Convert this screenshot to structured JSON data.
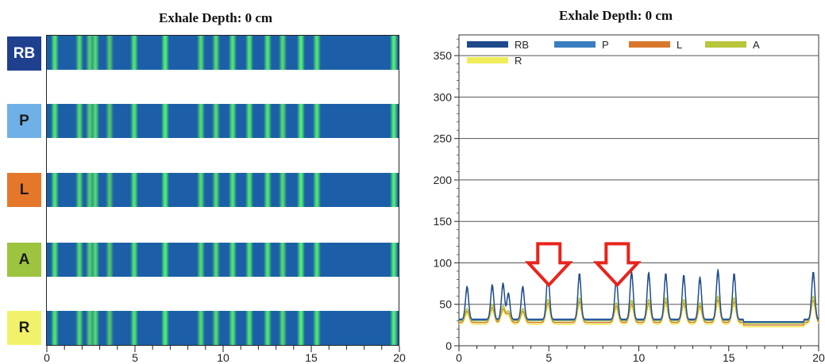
{
  "chart_data": [
    {
      "type": "heatmap",
      "title": "Exhale  Depth: 0 cm",
      "rows": [
        "RB",
        "P",
        "L",
        "A",
        "R"
      ],
      "row_colors": {
        "RB": "#1f3f8f",
        "P": "#6fb0e6",
        "L": "#e5772a",
        "A": "#9cc43f",
        "R": "#f2f26a"
      },
      "xlim": [
        0,
        20
      ],
      "xticks": [
        "0",
        "5",
        "10",
        "15",
        "20"
      ],
      "base_color": "#1c5fa8",
      "stripes": [
        {
          "x": 0.45,
          "intensity": 0.9
        },
        {
          "x": 1.85,
          "intensity": 0.8
        },
        {
          "x": 2.45,
          "intensity": 0.7
        },
        {
          "x": 2.75,
          "intensity": 0.8
        },
        {
          "x": 3.55,
          "intensity": 0.6
        },
        {
          "x": 4.95,
          "intensity": 0.9
        },
        {
          "x": 6.7,
          "intensity": 1.0
        },
        {
          "x": 8.75,
          "intensity": 0.8
        },
        {
          "x": 9.6,
          "intensity": 0.8
        },
        {
          "x": 10.55,
          "intensity": 0.9
        },
        {
          "x": 11.5,
          "intensity": 0.9
        },
        {
          "x": 12.5,
          "intensity": 0.9
        },
        {
          "x": 13.4,
          "intensity": 0.8
        },
        {
          "x": 14.4,
          "intensity": 1.0
        },
        {
          "x": 15.3,
          "intensity": 0.9
        },
        {
          "x": 19.7,
          "intensity": 1.0
        }
      ]
    },
    {
      "type": "line",
      "title": "Exhale  Depth: 0 cm",
      "xlim": [
        0,
        20
      ],
      "ylim": [
        0,
        375
      ],
      "xticks": [
        "0",
        "5",
        "10",
        "15",
        "20"
      ],
      "yticks": [
        "0",
        "50",
        "100",
        "150",
        "200",
        "250",
        "300",
        "350"
      ],
      "grid": true,
      "legend": "top",
      "legend_items": [
        {
          "name": "RB",
          "color": "#1e4a8c"
        },
        {
          "name": "P",
          "color": "#3a7dc0"
        },
        {
          "name": "L",
          "color": "#d9772d"
        },
        {
          "name": "A",
          "color": "#b8c63c"
        },
        {
          "name": "R",
          "color": "#f0ec5a"
        }
      ],
      "baseline": 30,
      "peaks": [
        {
          "x": 0.45,
          "rb": 70,
          "a": 45
        },
        {
          "x": 1.85,
          "rb": 72,
          "a": 50
        },
        {
          "x": 2.45,
          "rb": 74,
          "a": 48
        },
        {
          "x": 2.75,
          "rb": 62,
          "a": 42
        },
        {
          "x": 3.55,
          "rb": 70,
          "a": 45
        },
        {
          "x": 4.95,
          "rb": 85,
          "a": 56
        },
        {
          "x": 6.7,
          "rb": 86,
          "a": 58
        },
        {
          "x": 8.75,
          "rb": 80,
          "a": 52
        },
        {
          "x": 9.6,
          "rb": 88,
          "a": 55
        },
        {
          "x": 10.55,
          "rb": 87,
          "a": 56
        },
        {
          "x": 11.5,
          "rb": 86,
          "a": 58
        },
        {
          "x": 12.5,
          "rb": 84,
          "a": 56
        },
        {
          "x": 13.4,
          "rb": 81,
          "a": 52
        },
        {
          "x": 14.4,
          "rb": 90,
          "a": 60
        },
        {
          "x": 15.3,
          "rb": 86,
          "a": 58
        },
        {
          "x": 19.7,
          "rb": 88,
          "a": 60
        }
      ],
      "annotations": [
        {
          "type": "down-arrow",
          "x": 5.0,
          "y": 125,
          "color": "#e8231c"
        },
        {
          "type": "down-arrow",
          "x": 8.8,
          "y": 125,
          "color": "#e8231c"
        }
      ]
    }
  ]
}
